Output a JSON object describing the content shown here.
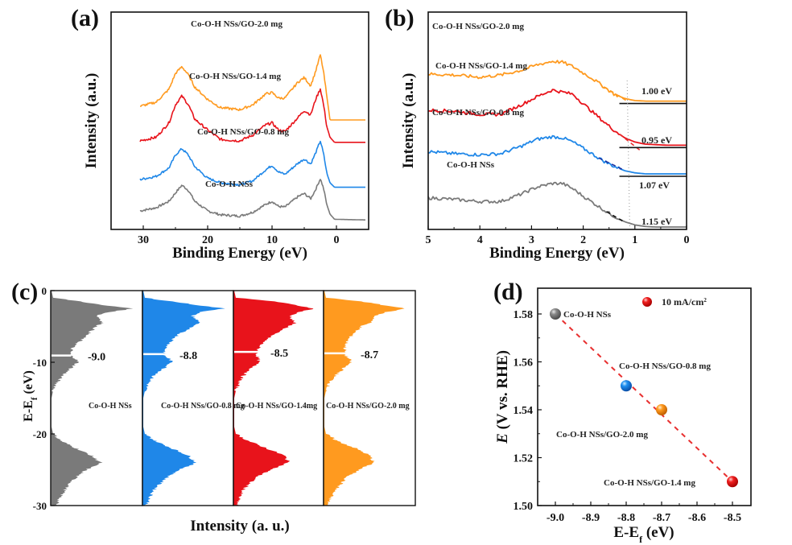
{
  "colors": {
    "gray": "#7a7a7a",
    "blue": "#1f87e8",
    "red": "#e8131b",
    "orange": "#ff9a1f",
    "dark_blue": "#1a2fa0",
    "fit_red": "#e83030",
    "text": "#111111"
  },
  "chart_data": [
    {
      "panel": "(a)",
      "type": "line",
      "title": "",
      "xlabel": "Binding Energy (eV)",
      "ylabel": "Intensity (a.u.)",
      "xlim": [
        35,
        -5
      ],
      "x_ticks": [
        30,
        20,
        10,
        0
      ],
      "y_ticks": [],
      "series": [
        {
          "name": "Co-O-H NSs",
          "color": "gray",
          "offset": 0.0,
          "x": [
            30.5,
            28,
            26,
            25,
            24,
            23,
            22,
            20,
            18,
            15,
            13,
            11,
            10,
            9,
            8,
            6,
            5,
            4,
            3.2,
            2.5,
            2,
            1.5,
            1,
            0.3,
            -4.5
          ],
          "y": [
            0.1,
            0.15,
            0.25,
            0.38,
            0.5,
            0.42,
            0.25,
            0.1,
            0.04,
            0.02,
            0.08,
            0.2,
            0.25,
            0.17,
            0.16,
            0.32,
            0.37,
            0.29,
            0.44,
            0.6,
            0.45,
            0.2,
            0.05,
            -0.03,
            -0.04
          ]
        },
        {
          "name": "Co-O-H NSs/GO-0.8 mg",
          "color": "blue",
          "offset": 1.0,
          "x": [
            30.5,
            28,
            26,
            25,
            24,
            23,
            22,
            20,
            18,
            15,
            13,
            11,
            10,
            9,
            8,
            6,
            5,
            4,
            3.2,
            2.5,
            2,
            1.5,
            1,
            0.3,
            -4.5
          ],
          "y": [
            0.1,
            0.15,
            0.28,
            0.48,
            0.58,
            0.48,
            0.3,
            0.12,
            0.05,
            0.02,
            0.08,
            0.25,
            0.32,
            0.22,
            0.18,
            0.35,
            0.42,
            0.34,
            0.52,
            0.7,
            0.5,
            0.2,
            0.05,
            -0.02,
            -0.02
          ]
        },
        {
          "name": "Co-O-H NSs/GO-1.4 mg",
          "color": "red",
          "offset": 2.0,
          "x": [
            30.5,
            28,
            26,
            25,
            24,
            23,
            22,
            20,
            18,
            15,
            13,
            11,
            10,
            9,
            8,
            6,
            5,
            4,
            3.2,
            2.5,
            2,
            1.5,
            1,
            0.3,
            -4.5
          ],
          "y": [
            0.0,
            0.05,
            0.25,
            0.5,
            0.62,
            0.5,
            0.3,
            0.15,
            0.02,
            0.0,
            0.08,
            0.22,
            0.25,
            0.15,
            0.13,
            0.32,
            0.42,
            0.36,
            0.58,
            0.72,
            0.5,
            0.2,
            0.05,
            -0.02,
            -0.02
          ]
        },
        {
          "name": "Co-O-H NSs/GO-2.0 mg",
          "color": "orange",
          "offset": 3.0,
          "x": [
            30.5,
            28,
            26,
            25,
            24,
            23,
            22,
            20,
            18,
            15,
            13,
            11,
            10,
            9,
            8,
            6,
            5,
            4,
            3.2,
            2.5,
            2,
            1.5,
            1,
            0.3,
            -4.5
          ],
          "y": [
            0.0,
            0.06,
            0.25,
            0.48,
            0.58,
            0.46,
            0.28,
            0.1,
            -0.02,
            -0.05,
            0.02,
            0.18,
            0.2,
            0.12,
            0.12,
            0.35,
            0.42,
            0.3,
            0.52,
            0.75,
            0.5,
            0.15,
            -0.2,
            -0.2,
            -0.2
          ]
        }
      ],
      "annotations": [
        "Co-O-H NSs/GO-2.0 mg",
        "Co-O-H NSs/GO-1.4 mg",
        "Co-O-H NSs/GO-0.8 mg",
        "Co-O-H NSs"
      ]
    },
    {
      "panel": "(b)",
      "type": "line",
      "title": "",
      "xlabel": "Binding Energy (eV)",
      "ylabel": "Intensity (a.u.)",
      "xlim": [
        5,
        0
      ],
      "x_ticks": [
        5,
        4,
        3,
        2,
        1,
        0
      ],
      "y_ticks": [],
      "series": [
        {
          "name": "Co-O-H NSs",
          "color": "gray",
          "onset_eV": 1.15,
          "x": [
            5,
            4.5,
            4,
            3.6,
            3.2,
            2.9,
            2.6,
            2.4,
            2.2,
            2.0,
            1.8,
            1.6,
            1.4,
            1.2,
            1.0,
            0.8,
            0.6,
            0.4,
            0.0
          ],
          "y": [
            0.55,
            0.52,
            0.48,
            0.48,
            0.62,
            0.75,
            0.82,
            0.82,
            0.72,
            0.58,
            0.45,
            0.32,
            0.2,
            0.1,
            0.04,
            0.01,
            0.0,
            0.0,
            0.0
          ]
        },
        {
          "name": "Co-O-H NSs/GO-0.8 mg",
          "color": "blue",
          "onset_eV": 1.07,
          "x": [
            5,
            4.5,
            4,
            3.6,
            3.2,
            2.9,
            2.6,
            2.4,
            2.2,
            2.0,
            1.8,
            1.6,
            1.4,
            1.2,
            1.0,
            0.8,
            0.6,
            0.4,
            0.0
          ],
          "y": [
            1.42,
            1.38,
            1.36,
            1.38,
            1.52,
            1.65,
            1.7,
            1.68,
            1.6,
            1.48,
            1.36,
            1.24,
            1.14,
            1.06,
            1.02,
            1.0,
            1.0,
            1.0,
            1.0
          ]
        },
        {
          "name": "Co-O-H NSs/GO-1.4 mg",
          "color": "red",
          "onset_eV": 0.95,
          "x": [
            5,
            4.5,
            4,
            3.6,
            3.2,
            2.9,
            2.6,
            2.4,
            2.2,
            2.0,
            1.8,
            1.6,
            1.4,
            1.2,
            1.0,
            0.8,
            0.6,
            0.4,
            0.0
          ],
          "y": [
            2.2,
            2.18,
            2.12,
            2.12,
            2.3,
            2.45,
            2.58,
            2.54,
            2.5,
            2.32,
            2.15,
            1.98,
            1.82,
            1.68,
            1.6,
            1.56,
            1.55,
            1.54,
            1.54
          ]
        },
        {
          "name": "Co-O-H NSs/GO-2.0 mg",
          "color": "orange",
          "onset_eV": 1.0,
          "x": [
            5,
            4.5,
            4,
            3.6,
            3.2,
            2.9,
            2.6,
            2.4,
            2.2,
            2.0,
            1.8,
            1.6,
            1.4,
            1.2,
            1.0,
            0.8,
            0.6,
            0.4,
            0.0
          ],
          "y": [
            2.88,
            2.86,
            2.82,
            2.86,
            2.95,
            3.05,
            3.12,
            3.1,
            3.02,
            2.9,
            2.78,
            2.64,
            2.5,
            2.42,
            2.38,
            2.37,
            2.37,
            2.37,
            2.37
          ]
        }
      ],
      "labels": [
        "Co-O-H NSs/GO-2.0 mg",
        "Co-O-H NSs/GO-1.4 mg",
        "Co-O-H NSs/GO-0.8 mg",
        "Co-O-H NSs"
      ],
      "onset_labels": [
        "1.00 eV",
        "0.95 eV",
        "1.07 eV",
        "1.15 eV"
      ]
    },
    {
      "panel": "(c)",
      "type": "area",
      "title": "",
      "xlabel": "Intensity (a. u.)",
      "ylabel": "E-Ef (eV)",
      "ylim": [
        -30,
        0
      ],
      "y_ticks": [
        0,
        -10,
        -20,
        -30
      ],
      "energy": [
        0,
        -1,
        -1.5,
        -2,
        -2.5,
        -3,
        -3.5,
        -4,
        -4.5,
        -5,
        -6,
        -7,
        -8,
        -9,
        -9.5,
        -10,
        -11,
        -12,
        -13,
        -14,
        -15,
        -17,
        -19,
        -20,
        -21,
        -22,
        -23,
        -24,
        -25,
        -26,
        -27,
        -28,
        -29,
        -30
      ],
      "series": [
        {
          "name": "Co-O-H NSs",
          "color": "gray",
          "d_band_center": -9.0,
          "intensity": [
            0,
            0.02,
            0.35,
            0.6,
            1.0,
            0.7,
            0.55,
            0.6,
            0.62,
            0.55,
            0.45,
            0.35,
            0.25,
            0.22,
            0.3,
            0.32,
            0.22,
            0.12,
            0.06,
            0.02,
            0.0,
            0.0,
            0.0,
            0.02,
            0.12,
            0.3,
            0.48,
            0.6,
            0.42,
            0.3,
            0.22,
            0.15,
            0.1,
            0.05
          ]
        },
        {
          "name": "Co-O-H NSs/GO-0.8 mg",
          "color": "blue",
          "d_band_center": -8.8,
          "intensity": [
            0,
            0.02,
            0.35,
            0.65,
            1.0,
            0.7,
            0.6,
            0.65,
            0.7,
            0.6,
            0.45,
            0.35,
            0.28,
            0.25,
            0.32,
            0.35,
            0.24,
            0.12,
            0.06,
            0.02,
            0.0,
            0.0,
            0.0,
            0.02,
            0.15,
            0.35,
            0.55,
            0.65,
            0.45,
            0.3,
            0.2,
            0.12,
            0.08,
            0.04
          ]
        },
        {
          "name": "Co-O-H NSs/GO-1.4mg",
          "color": "red",
          "d_band_center": -8.5,
          "intensity": [
            0,
            0.02,
            0.5,
            0.75,
            1.0,
            0.8,
            0.7,
            0.72,
            0.75,
            0.68,
            0.5,
            0.38,
            0.3,
            0.28,
            0.3,
            0.3,
            0.2,
            0.1,
            0.05,
            0.02,
            0.0,
            0.0,
            0.0,
            0.02,
            0.18,
            0.4,
            0.62,
            0.68,
            0.45,
            0.28,
            0.18,
            0.1,
            0.06,
            0.03
          ]
        },
        {
          "name": "Co-O-H NSs/GO-2.0 mg",
          "color": "orange",
          "d_band_center": -8.7,
          "intensity": [
            0,
            0.02,
            0.45,
            0.7,
            1.0,
            0.75,
            0.62,
            0.6,
            0.55,
            0.45,
            0.35,
            0.28,
            0.25,
            0.25,
            0.3,
            0.32,
            0.22,
            0.12,
            0.06,
            0.02,
            0.0,
            0.0,
            0.0,
            0.02,
            0.16,
            0.38,
            0.55,
            0.6,
            0.42,
            0.28,
            0.2,
            0.12,
            0.07,
            0.03
          ]
        }
      ],
      "value_labels": [
        "-9.0",
        "-8.8",
        "-8.5",
        "-8.7"
      ]
    },
    {
      "panel": "(d)",
      "type": "scatter",
      "title": "",
      "xlabel": "E-Ef (eV)",
      "ylabel": "E (V vs. RHE)",
      "xlim": [
        -9.05,
        -8.45
      ],
      "ylim": [
        1.5,
        1.59
      ],
      "x_ticks": [
        -9.0,
        -8.9,
        -8.8,
        -8.7,
        -8.6,
        -8.5
      ],
      "y_ticks": [
        1.5,
        1.52,
        1.54,
        1.56,
        1.58
      ],
      "points": [
        {
          "name": "Co-O-H NSs",
          "x": -9.0,
          "y": 1.58,
          "color": "gray"
        },
        {
          "name": "Co-O-H NSs/GO-0.8 mg",
          "x": -8.8,
          "y": 1.55,
          "color": "blue"
        },
        {
          "name": "Co-O-H NSs/GO-2.0 mg",
          "x": -8.7,
          "y": 1.54,
          "color": "orange"
        },
        {
          "name": "Co-O-H NSs/GO-1.4 mg",
          "x": -8.5,
          "y": 1.51,
          "color": "red"
        }
      ],
      "fit_line": {
        "x": [
          -9.0,
          -8.5
        ],
        "y": [
          1.58,
          1.51
        ],
        "style": "dashed",
        "color": "fit_red"
      },
      "legend": {
        "label": "10 mA/cm²",
        "position": "top-right",
        "color": "red"
      }
    }
  ],
  "panels": {
    "a": {
      "letter": "(a)",
      "xlabel": "Binding Energy (eV)",
      "ylabel": "Intensity (a.u.)"
    },
    "b": {
      "letter": "(b)",
      "xlabel": "Binding Energy (eV)",
      "ylabel": "Intensity (a.u.)"
    },
    "c": {
      "letter": "(c)",
      "xlabel": "Intensity (a. u.)",
      "ylabel_main": "E-E",
      "ylabel_sub": "f",
      "ylabel_unit": " (eV)"
    },
    "d": {
      "letter": "(d)",
      "xlabel_main": "E-E",
      "xlabel_sub": "f",
      "xlabel_unit": " (eV)",
      "ylabel_italic": "E",
      "ylabel_rest": " (V vs. RHE)",
      "legend_main": "10 mA/cm",
      "legend_sup": "2"
    }
  }
}
